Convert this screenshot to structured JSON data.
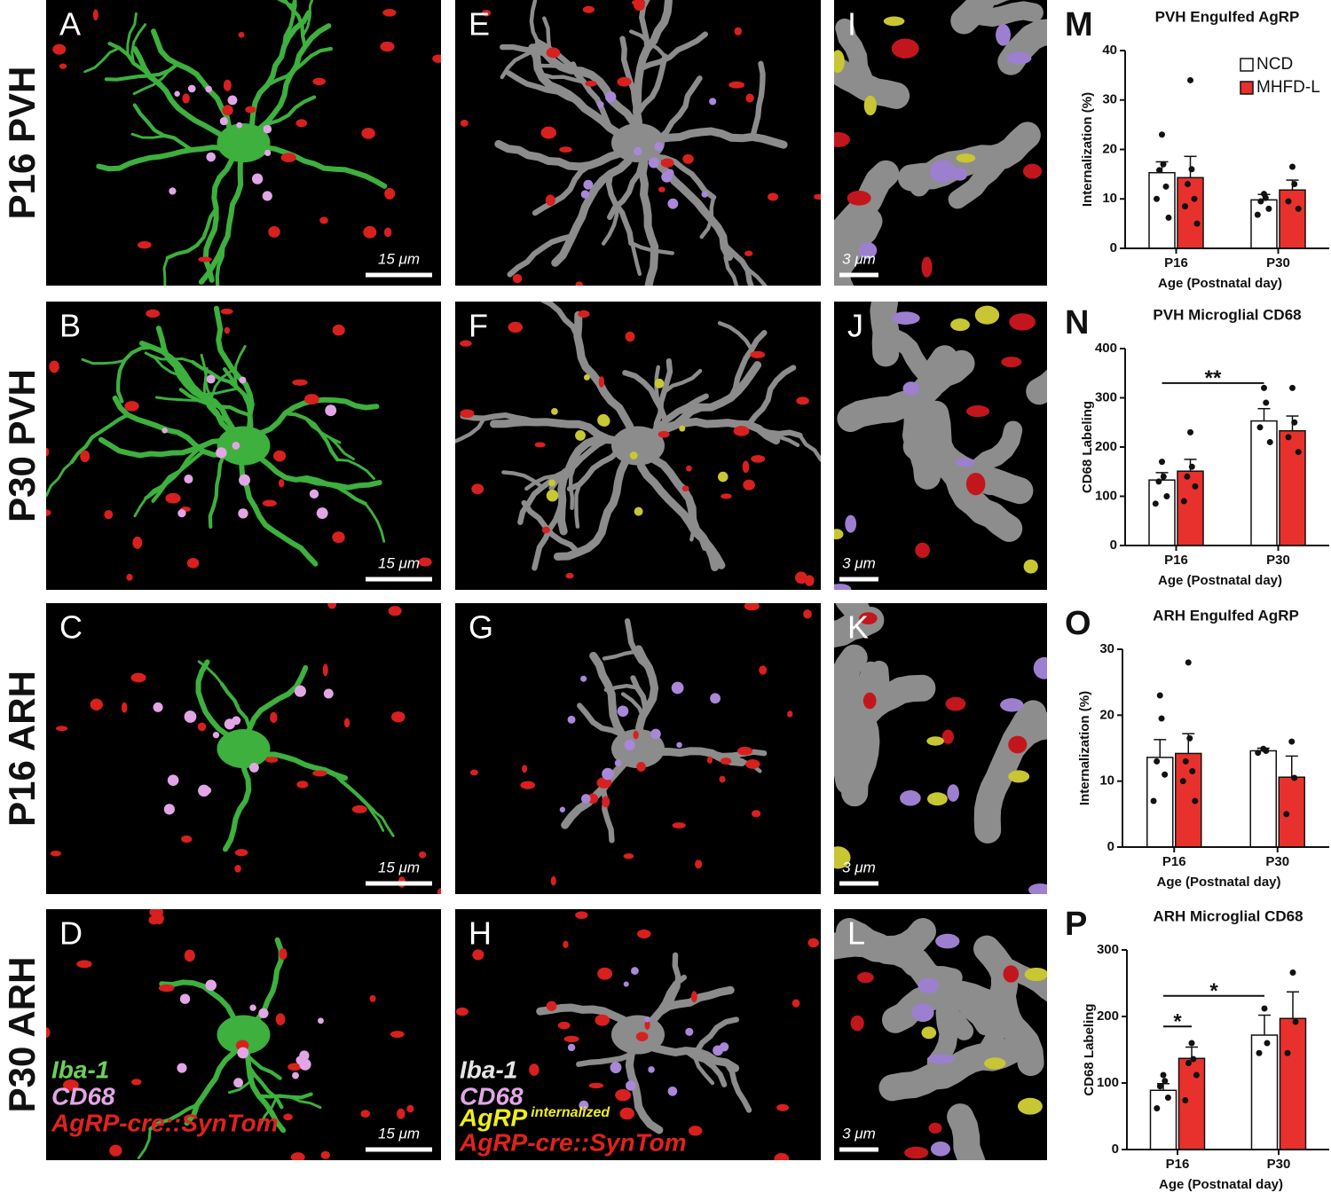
{
  "figure": {
    "rows": [
      "P16 PVH",
      "P30 PVH",
      "P16 ARH",
      "P30 ARH"
    ],
    "panels": [
      {
        "letter": "A",
        "scale": "15 μm"
      },
      {
        "letter": "B",
        "scale": "15 μm"
      },
      {
        "letter": "C",
        "scale": "15 μm"
      },
      {
        "letter": "D",
        "scale": "15 μm"
      },
      {
        "letter": "E"
      },
      {
        "letter": "F"
      },
      {
        "letter": "G"
      },
      {
        "letter": "H"
      },
      {
        "letter": "I",
        "scale": "3 μm"
      },
      {
        "letter": "J",
        "scale": "3 μm"
      },
      {
        "letter": "K",
        "scale": "3 μm"
      },
      {
        "letter": "L",
        "scale": "3 μm"
      }
    ],
    "legends": {
      "raw": [
        "Iba-1",
        "CD68",
        "AgRP-cre::SynTom"
      ],
      "rendered": [
        "Iba-1",
        "CD68",
        "AgRP",
        "internalized",
        "AgRP-cre::SynTom"
      ]
    }
  },
  "chart_data": [
    {
      "type": "bar",
      "letter": "M",
      "title": "PVH Engulfed AgRP",
      "ylabel": "Internalization (%)",
      "xlabel": "Age (Postnatal day)",
      "categories": [
        "P16",
        "P30"
      ],
      "ylim": [
        0,
        40
      ],
      "yticks": [
        0,
        10,
        20,
        30,
        40
      ],
      "legend": "upper right",
      "series": [
        {
          "name": "NCD",
          "color": "#ffffff",
          "values": [
            15.3,
            9.8
          ],
          "errors": [
            2.2,
            1.1
          ],
          "points": [
            [
              23,
              17,
              15.8,
              12.5,
              10,
              6.2
            ],
            [
              11,
              10.2,
              9.5,
              8,
              6.8
            ]
          ]
        },
        {
          "name": "MHFD-L",
          "color": "#e8312c",
          "values": [
            14.3,
            11.8
          ],
          "errors": [
            4.3,
            2
          ],
          "points": [
            [
              34,
              16,
              13,
              10,
              8.5,
              5
            ],
            [
              16.5,
              13,
              9.5,
              8
            ]
          ]
        }
      ]
    },
    {
      "type": "bar",
      "letter": "N",
      "title": "PVH Microglial CD68",
      "ylabel": "CD68 Labeling",
      "xlabel": "Age (Postnatal day)",
      "categories": [
        "P16",
        "P30"
      ],
      "ylim": [
        0,
        400
      ],
      "yticks": [
        0,
        100,
        200,
        300,
        400
      ],
      "series": [
        {
          "color": "#ffffff",
          "values": [
            133,
            253
          ],
          "errors": [
            15,
            25
          ],
          "points": [
            [
              170,
              140,
              130,
              100,
              85
            ],
            [
              320,
              290,
              240,
              210
            ]
          ]
        },
        {
          "color": "#e8312c",
          "values": [
            151,
            233
          ],
          "errors": [
            24,
            30
          ],
          "points": [
            [
              230,
              160,
              140,
              120,
              90
            ],
            [
              320,
              250,
              220,
              190
            ]
          ]
        }
      ],
      "significance": [
        {
          "label": "**",
          "y": 330,
          "bars": [
            [
              0,
              0
            ],
            [
              1,
              0
            ]
          ]
        }
      ]
    },
    {
      "type": "bar",
      "letter": "O",
      "title": "ARH Engulfed AgRP",
      "ylabel": "Internalization (%)",
      "xlabel": "Age (Postnatal day)",
      "categories": [
        "P16",
        "P30"
      ],
      "ylim": [
        0,
        30
      ],
      "yticks": [
        0,
        10,
        20,
        30
      ],
      "series": [
        {
          "color": "#ffffff",
          "values": [
            13.6,
            14.6
          ],
          "errors": [
            2.7,
            0.4
          ],
          "points": [
            [
              23,
              19.5,
              13,
              11,
              7
            ],
            [
              14.9,
              14.6,
              14.3
            ]
          ]
        },
        {
          "color": "#e8312c",
          "values": [
            14.2,
            10.6
          ],
          "errors": [
            3,
            3.2
          ],
          "points": [
            [
              28,
              16.5,
              13,
              11.5,
              10,
              7
            ],
            [
              16,
              10.5,
              5
            ]
          ]
        }
      ]
    },
    {
      "type": "bar",
      "letter": "P",
      "title": "ARH Microglial CD68",
      "ylabel": "CD68 Labeling",
      "xlabel": "Age (Postnatal day)",
      "categories": [
        "P16",
        "P30"
      ],
      "ylim": [
        0,
        300
      ],
      "yticks": [
        0,
        100,
        200,
        300
      ],
      "series": [
        {
          "color": "#ffffff",
          "values": [
            89,
            172
          ],
          "errors": [
            10,
            30
          ],
          "points": [
            [
              112,
              103,
              95,
              78,
              62
            ],
            [
              212,
              160,
              145
            ]
          ]
        },
        {
          "color": "#e8312c",
          "values": [
            137,
            197
          ],
          "errors": [
            17,
            40
          ],
          "points": [
            [
              160,
              136,
              130,
              112,
              74
            ],
            [
              266,
              192,
              145
            ]
          ]
        }
      ],
      "significance": [
        {
          "label": "*",
          "y": 185,
          "bars": [
            [
              0,
              0
            ],
            [
              0,
              1
            ]
          ]
        },
        {
          "label": "*",
          "y": 231,
          "bars": [
            [
              0,
              0
            ],
            [
              1,
              0
            ]
          ]
        }
      ]
    }
  ]
}
